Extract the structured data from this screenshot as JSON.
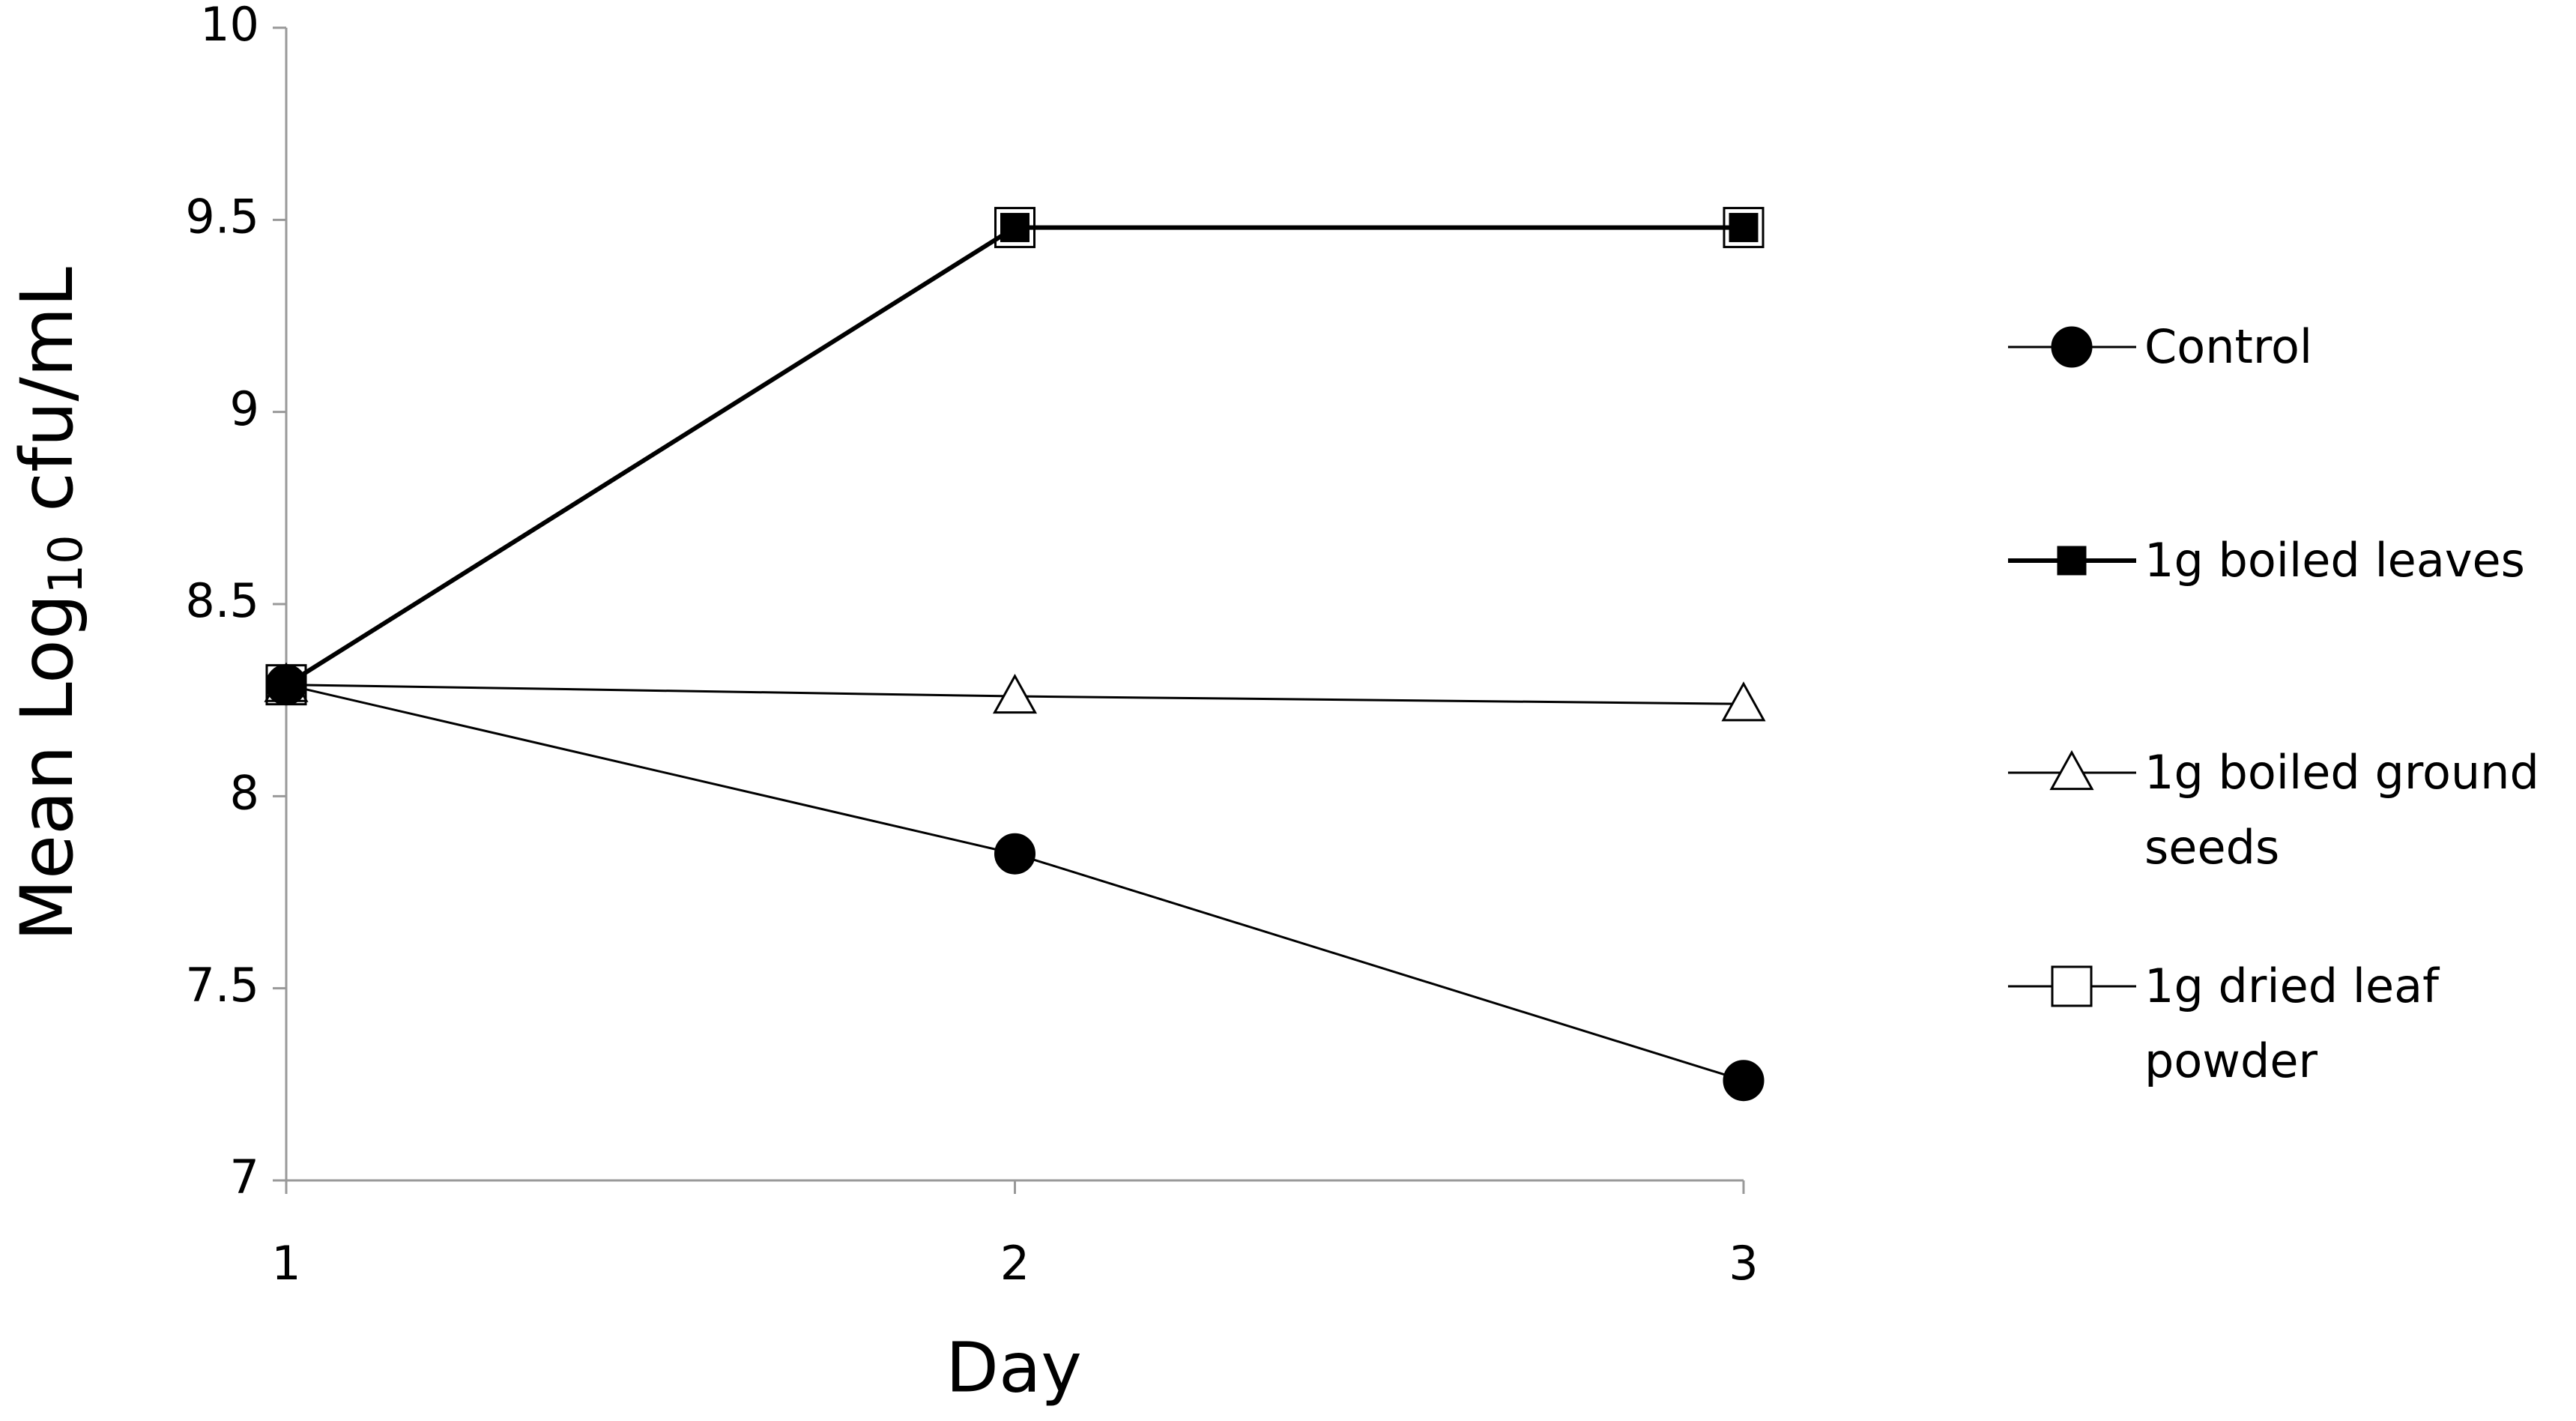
{
  "chart_data": {
    "type": "line",
    "x_label": "Day",
    "y_label": {
      "text": "Mean Log",
      "subscript": "10",
      "rest": " cfu/mL"
    },
    "x": [
      1,
      2,
      3
    ],
    "xlim": [
      1,
      3
    ],
    "xticks": [
      1,
      2,
      3
    ],
    "ylim": [
      7,
      10
    ],
    "yticks": [
      7,
      7.5,
      8,
      8.5,
      9,
      9.5,
      10
    ],
    "legend": "right",
    "series": [
      {
        "name": "1g dried leaf powder",
        "color": "#000000",
        "marker": "square",
        "marker_fill": "#ffffff",
        "values": [
          8.29,
          9.48,
          9.48
        ]
      },
      {
        "name": "1g boiled leaves",
        "color": "#000000",
        "marker": "square",
        "marker_fill": "#000000",
        "values": [
          8.29,
          9.48,
          9.48
        ]
      },
      {
        "name": "1g boiled ground seeds",
        "color": "#000000",
        "marker": "triangle",
        "marker_fill": "#ffffff",
        "values": [
          8.29,
          8.26,
          8.24
        ]
      },
      {
        "name": "Control",
        "color": "#000000",
        "marker": "circle",
        "marker_fill": "#000000",
        "values": [
          8.29,
          7.85,
          7.26
        ]
      }
    ]
  }
}
